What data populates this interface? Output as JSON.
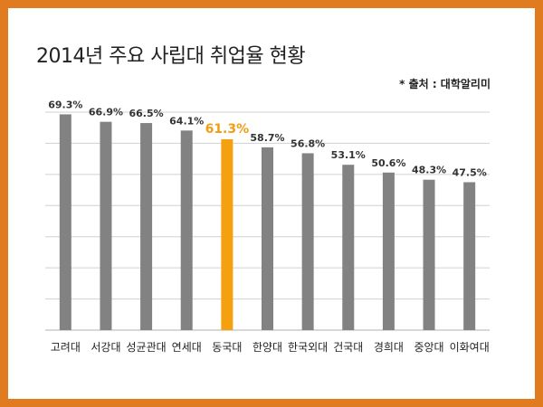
{
  "title": "2014년 주요 사립대 취업율 현황",
  "source": "* 출처 : 대학알리미",
  "colors": {
    "border": "#e07b1f",
    "bar": "#828282",
    "highlight_bar": "#f5a00e",
    "highlight_label": "#f29d12",
    "grid": "#d0d0d0"
  },
  "chart_data": {
    "type": "bar",
    "categories": [
      "고려대",
      "서강대",
      "성균관대",
      "연세대",
      "동국대",
      "한양대",
      "한국외대",
      "건국대",
      "경희대",
      "중앙대",
      "이화여대"
    ],
    "values": [
      69.3,
      66.9,
      66.5,
      64.1,
      61.3,
      58.7,
      56.8,
      53.1,
      50.6,
      48.3,
      47.5
    ],
    "value_labels": [
      "69.3%",
      "66.9%",
      "66.5%",
      "64.1%",
      "61.3%",
      "58.7%",
      "56.8%",
      "53.1%",
      "50.6%",
      "48.3%",
      "47.5%"
    ],
    "highlight_index": 4,
    "title": "2014년 주요 사립대 취업율 현황",
    "xlabel": "",
    "ylabel": "",
    "ylim": [
      0,
      70
    ],
    "grid": true,
    "legend": "none"
  }
}
